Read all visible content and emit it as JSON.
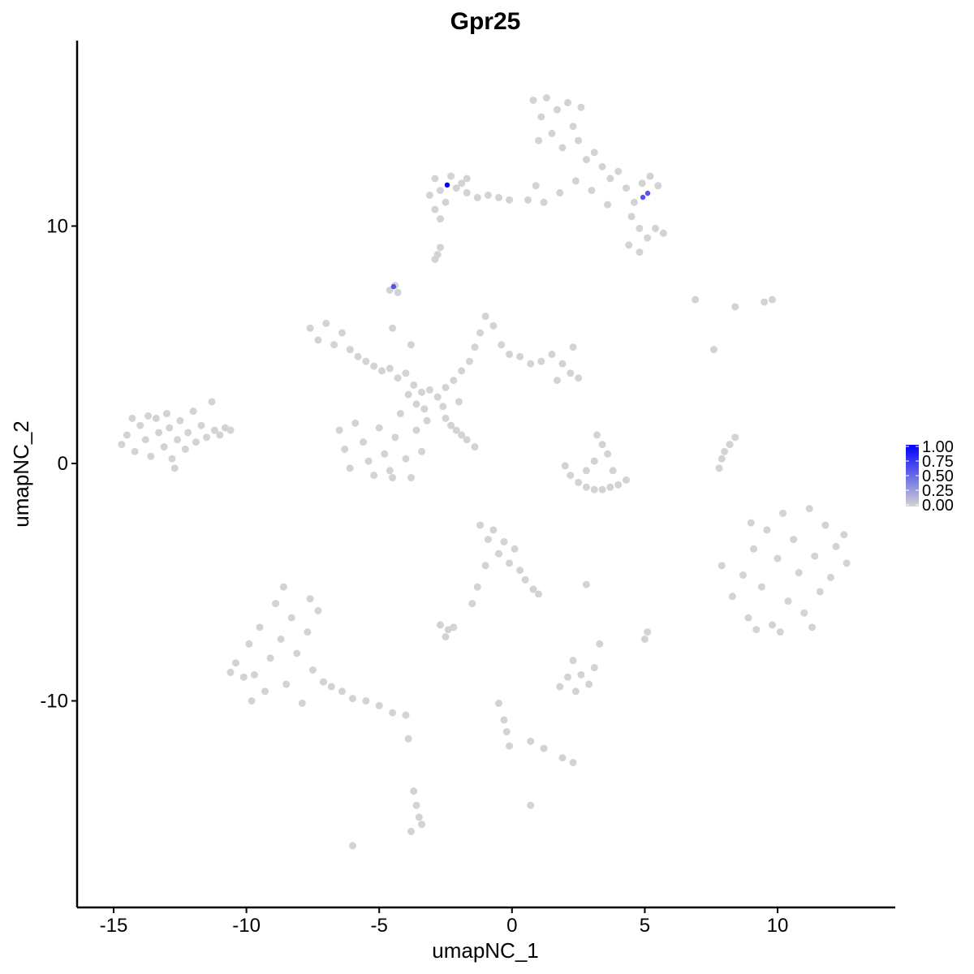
{
  "chart_data": {
    "type": "scatter",
    "title": "Gpr25",
    "xlabel": "umapNC_1",
    "ylabel": "umapNC_2",
    "xlim": [
      -16.4,
      14.4
    ],
    "ylim": [
      -18.7,
      17.8
    ],
    "xticks": [
      -15,
      -10,
      -5,
      0,
      5,
      10
    ],
    "yticks": [
      -10,
      0,
      10
    ],
    "xtick_labels": [
      "-15",
      "-10",
      "-5",
      "0",
      "5",
      "10"
    ],
    "ytick_labels": [
      "-10",
      "0",
      "10"
    ],
    "grid": false,
    "legend": {
      "position": "right",
      "type": "colorbar",
      "low_color": "#D3D3D3",
      "high_color": "#0000FF",
      "ticks": [
        0,
        0.25,
        0.5,
        0.75,
        1.0
      ],
      "tick_labels": [
        "0.00",
        "0.25",
        "0.50",
        "0.75",
        "1.00"
      ]
    },
    "background_points_value": 0,
    "background_points": [
      [
        -14.7,
        0.8
      ],
      [
        -14.5,
        1.2
      ],
      [
        -14.2,
        0.5
      ],
      [
        -14.0,
        1.6
      ],
      [
        -13.8,
        1.0
      ],
      [
        -13.6,
        0.3
      ],
      [
        -13.4,
        1.9
      ],
      [
        -13.3,
        1.3
      ],
      [
        -13.1,
        0.7
      ],
      [
        -13.0,
        2.1
      ],
      [
        -12.9,
        1.5
      ],
      [
        -12.8,
        0.2
      ],
      [
        -12.6,
        1.0
      ],
      [
        -12.5,
        1.8
      ],
      [
        -12.3,
        0.6
      ],
      [
        -12.2,
        1.3
      ],
      [
        -12.0,
        2.2
      ],
      [
        -11.9,
        0.9
      ],
      [
        -11.7,
        1.6
      ],
      [
        -11.5,
        1.1
      ],
      [
        -11.3,
        2.6
      ],
      [
        -11.2,
        1.4
      ],
      [
        -11.0,
        1.2
      ],
      [
        -10.8,
        1.5
      ],
      [
        -10.6,
        1.4
      ],
      [
        -12.7,
        -0.2
      ],
      [
        -13.7,
        2.0
      ],
      [
        -14.3,
        1.9
      ],
      [
        -7.6,
        5.7
      ],
      [
        -7.3,
        5.2
      ],
      [
        -7.0,
        5.9
      ],
      [
        -6.7,
        5.0
      ],
      [
        -6.4,
        5.5
      ],
      [
        -6.1,
        4.8
      ],
      [
        -5.8,
        4.5
      ],
      [
        -5.5,
        4.3
      ],
      [
        -5.2,
        4.1
      ],
      [
        -4.9,
        3.9
      ],
      [
        -4.6,
        4.0
      ],
      [
        -4.3,
        3.6
      ],
      [
        -4.0,
        3.8
      ],
      [
        -3.7,
        3.3
      ],
      [
        -3.4,
        3.0
      ],
      [
        -3.1,
        3.1
      ],
      [
        -2.8,
        2.8
      ],
      [
        -2.5,
        3.2
      ],
      [
        -2.2,
        3.5
      ],
      [
        -1.9,
        3.9
      ],
      [
        -1.6,
        4.3
      ],
      [
        -1.4,
        4.9
      ],
      [
        -1.2,
        5.5
      ],
      [
        -1.0,
        6.2
      ],
      [
        -0.7,
        5.8
      ],
      [
        -0.4,
        5.0
      ],
      [
        -0.1,
        4.6
      ],
      [
        0.3,
        4.5
      ],
      [
        0.7,
        4.2
      ],
      [
        1.1,
        4.3
      ],
      [
        1.5,
        4.6
      ],
      [
        1.9,
        4.2
      ],
      [
        2.2,
        3.8
      ],
      [
        2.5,
        3.6
      ],
      [
        2.3,
        4.9
      ],
      [
        1.7,
        3.5
      ],
      [
        -2.0,
        2.6
      ],
      [
        -2.6,
        2.4
      ],
      [
        -3.3,
        2.3
      ],
      [
        -3.9,
        2.9
      ],
      [
        -4.5,
        5.7
      ],
      [
        -3.8,
        5.0
      ],
      [
        -6.5,
        1.4
      ],
      [
        -6.3,
        0.6
      ],
      [
        -6.1,
        -0.2
      ],
      [
        -5.9,
        1.7
      ],
      [
        -5.6,
        0.9
      ],
      [
        -5.4,
        0.1
      ],
      [
        -5.2,
        -0.5
      ],
      [
        -5.0,
        1.5
      ],
      [
        -4.8,
        0.4
      ],
      [
        -4.6,
        -0.3
      ],
      [
        -4.4,
        1.1
      ],
      [
        -4.2,
        2.1
      ],
      [
        -4.0,
        0.2
      ],
      [
        -3.8,
        -0.6
      ],
      [
        -3.6,
        1.4
      ],
      [
        -3.4,
        0.5
      ],
      [
        -3.2,
        1.8
      ],
      [
        -3.6,
        2.5
      ],
      [
        -4.5,
        -0.6
      ],
      [
        -2.5,
        1.9
      ],
      [
        -2.3,
        1.6
      ],
      [
        -2.1,
        1.4
      ],
      [
        -1.9,
        1.2
      ],
      [
        -1.7,
        1.0
      ],
      [
        -1.4,
        0.7
      ],
      [
        0.8,
        15.3
      ],
      [
        1.1,
        14.6
      ],
      [
        1.3,
        15.4
      ],
      [
        1.5,
        13.9
      ],
      [
        1.7,
        14.9
      ],
      [
        1.9,
        13.3
      ],
      [
        2.1,
        15.2
      ],
      [
        2.3,
        14.2
      ],
      [
        2.5,
        13.6
      ],
      [
        2.6,
        15.0
      ],
      [
        1.0,
        13.6
      ],
      [
        2.8,
        12.8
      ],
      [
        3.1,
        13.1
      ],
      [
        3.4,
        12.5
      ],
      [
        3.7,
        12.0
      ],
      [
        4.0,
        12.3
      ],
      [
        4.3,
        11.6
      ],
      [
        4.6,
        11.0
      ],
      [
        4.9,
        11.8
      ],
      [
        5.2,
        12.1
      ],
      [
        5.5,
        11.7
      ],
      [
        4.5,
        10.4
      ],
      [
        4.8,
        9.9
      ],
      [
        5.1,
        9.5
      ],
      [
        5.4,
        9.9
      ],
      [
        5.7,
        9.7
      ],
      [
        4.8,
        8.9
      ],
      [
        4.4,
        9.2
      ],
      [
        3.6,
        10.9
      ],
      [
        3.0,
        11.5
      ],
      [
        2.4,
        11.9
      ],
      [
        1.8,
        11.4
      ],
      [
        1.2,
        11.0
      ],
      [
        0.9,
        11.7
      ],
      [
        0.6,
        11.1
      ],
      [
        -0.1,
        11.1
      ],
      [
        -0.5,
        11.2
      ],
      [
        -0.9,
        11.3
      ],
      [
        -1.3,
        11.2
      ],
      [
        -1.7,
        11.4
      ],
      [
        -3.1,
        11.3
      ],
      [
        -2.9,
        12.0
      ],
      [
        -2.7,
        11.5
      ],
      [
        -2.5,
        11.0
      ],
      [
        -2.3,
        12.1
      ],
      [
        -2.1,
        11.6
      ],
      [
        -1.9,
        11.8
      ],
      [
        -1.7,
        12.0
      ],
      [
        -2.9,
        10.7
      ],
      [
        -2.7,
        10.3
      ],
      [
        -2.8,
        8.8
      ],
      [
        -2.7,
        9.1
      ],
      [
        -2.9,
        8.6
      ],
      [
        -4.4,
        7.5
      ],
      [
        -4.6,
        7.3
      ],
      [
        -4.3,
        7.2
      ],
      [
        2.0,
        -0.1
      ],
      [
        2.2,
        -0.5
      ],
      [
        2.5,
        -0.8
      ],
      [
        2.8,
        -1.0
      ],
      [
        3.1,
        -1.1
      ],
      [
        3.4,
        -1.1
      ],
      [
        3.7,
        -1.0
      ],
      [
        4.0,
        -0.9
      ],
      [
        4.3,
        -0.7
      ],
      [
        3.2,
        1.2
      ],
      [
        3.4,
        0.8
      ],
      [
        3.6,
        0.4
      ],
      [
        3.1,
        0.1
      ],
      [
        3.8,
        -0.3
      ],
      [
        2.8,
        -0.3
      ],
      [
        7.8,
        -0.2
      ],
      [
        7.9,
        0.2
      ],
      [
        8.0,
        0.5
      ],
      [
        8.2,
        0.8
      ],
      [
        8.4,
        1.1
      ],
      [
        7.9,
        -4.3
      ],
      [
        8.3,
        -5.6
      ],
      [
        8.7,
        -4.7
      ],
      [
        8.9,
        -6.5
      ],
      [
        9.1,
        -3.6
      ],
      [
        9.4,
        -5.2
      ],
      [
        9.6,
        -2.8
      ],
      [
        9.8,
        -6.8
      ],
      [
        10.0,
        -4.0
      ],
      [
        10.2,
        -2.1
      ],
      [
        10.4,
        -5.8
      ],
      [
        10.6,
        -3.2
      ],
      [
        10.8,
        -4.6
      ],
      [
        11.0,
        -6.3
      ],
      [
        11.2,
        -1.9
      ],
      [
        11.4,
        -3.9
      ],
      [
        11.6,
        -5.4
      ],
      [
        11.8,
        -2.6
      ],
      [
        12.0,
        -4.8
      ],
      [
        12.2,
        -3.5
      ],
      [
        12.5,
        -3.0
      ],
      [
        12.6,
        -4.2
      ],
      [
        9.2,
        -7.0
      ],
      [
        10.1,
        -7.1
      ],
      [
        11.3,
        -6.9
      ],
      [
        9.0,
        -2.5
      ],
      [
        -10.4,
        -8.4
      ],
      [
        -10.1,
        -9.0
      ],
      [
        -9.9,
        -7.6
      ],
      [
        -9.7,
        -8.9
      ],
      [
        -9.5,
        -6.9
      ],
      [
        -9.3,
        -9.6
      ],
      [
        -9.1,
        -8.2
      ],
      [
        -8.9,
        -5.9
      ],
      [
        -8.7,
        -7.4
      ],
      [
        -8.5,
        -9.3
      ],
      [
        -8.3,
        -6.5
      ],
      [
        -8.1,
        -8.0
      ],
      [
        -7.9,
        -10.1
      ],
      [
        -7.7,
        -7.1
      ],
      [
        -7.5,
        -8.7
      ],
      [
        -7.3,
        -6.2
      ],
      [
        -7.1,
        -9.2
      ],
      [
        -8.6,
        -5.2
      ],
      [
        -7.6,
        -5.7
      ],
      [
        -6.8,
        -9.4
      ],
      [
        -6.4,
        -9.6
      ],
      [
        -6.0,
        -9.9
      ],
      [
        -5.5,
        -10.0
      ],
      [
        -5.0,
        -10.2
      ],
      [
        -4.5,
        -10.5
      ],
      [
        -4.0,
        -10.6
      ],
      [
        -9.8,
        -10.0
      ],
      [
        -10.6,
        -8.8
      ],
      [
        -1.2,
        -2.6
      ],
      [
        -0.9,
        -3.2
      ],
      [
        -0.7,
        -2.8
      ],
      [
        -0.5,
        -3.8
      ],
      [
        -0.3,
        -3.3
      ],
      [
        -0.1,
        -4.2
      ],
      [
        0.1,
        -3.6
      ],
      [
        0.3,
        -4.5
      ],
      [
        0.5,
        -4.9
      ],
      [
        0.8,
        -5.3
      ],
      [
        1.0,
        -5.5
      ],
      [
        -1.0,
        -4.3
      ],
      [
        -1.3,
        -5.2
      ],
      [
        -1.5,
        -5.9
      ],
      [
        -2.7,
        -6.8
      ],
      [
        -2.4,
        -7.0
      ],
      [
        -2.2,
        -6.9
      ],
      [
        -2.5,
        -7.3
      ],
      [
        1.8,
        -9.4
      ],
      [
        2.1,
        -9.0
      ],
      [
        2.4,
        -9.6
      ],
      [
        2.6,
        -8.9
      ],
      [
        2.9,
        -9.3
      ],
      [
        3.1,
        -8.6
      ],
      [
        2.3,
        -8.3
      ],
      [
        3.3,
        -7.6
      ],
      [
        -0.5,
        -10.1
      ],
      [
        -0.3,
        -10.8
      ],
      [
        -0.2,
        -11.3
      ],
      [
        -0.1,
        -11.9
      ],
      [
        0.7,
        -11.7
      ],
      [
        1.2,
        -12.0
      ],
      [
        1.9,
        -12.4
      ],
      [
        2.3,
        -12.6
      ],
      [
        -3.7,
        -13.8
      ],
      [
        -3.6,
        -14.4
      ],
      [
        -3.5,
        -14.9
      ],
      [
        -3.4,
        -15.2
      ],
      [
        -3.8,
        -15.5
      ],
      [
        -3.9,
        -11.6
      ],
      [
        -6.0,
        -16.1
      ],
      [
        0.7,
        -14.4
      ],
      [
        5.0,
        -7.4
      ],
      [
        5.1,
        -7.1
      ],
      [
        2.8,
        -5.1
      ],
      [
        6.9,
        6.9
      ],
      [
        7.6,
        4.8
      ],
      [
        8.4,
        6.6
      ],
      [
        9.5,
        6.8
      ],
      [
        9.8,
        6.9
      ]
    ],
    "expressing_points": [
      {
        "x": -2.44,
        "y": 11.73,
        "value": 1.0
      },
      {
        "x": 4.93,
        "y": 11.21,
        "value": 0.6
      },
      {
        "x": 5.11,
        "y": 11.38,
        "value": 0.6
      },
      {
        "x": -4.46,
        "y": 7.45,
        "value": 0.6
      }
    ]
  }
}
